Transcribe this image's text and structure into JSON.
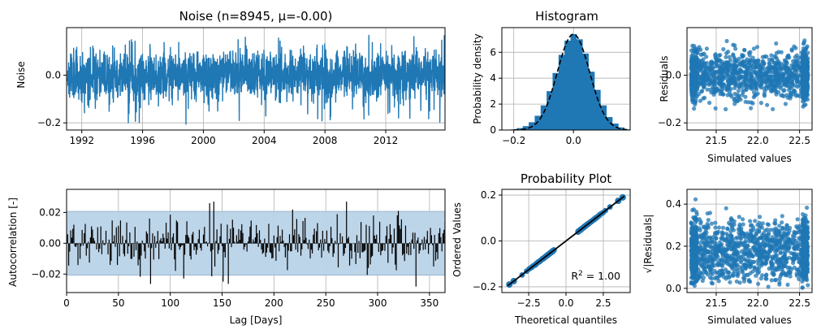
{
  "colors": {
    "primary": "#1f77b4",
    "band": "#b9d3e8",
    "black": "#000000",
    "grid": "#b0b0b0"
  },
  "chart_data": [
    {
      "id": "noise",
      "type": "line",
      "title": "Noise (n=8945, μ=-0.00)",
      "xlabel": "",
      "ylabel": "Noise",
      "xlim": [
        1991.0,
        2015.9
      ],
      "ylim": [
        -0.23,
        0.2
      ],
      "xticks": [
        1992,
        1996,
        2000,
        2004,
        2008,
        2012
      ],
      "yticks": [
        -0.2,
        0.0
      ],
      "xtick_labels": [
        "1992",
        "1996",
        "2000",
        "2004",
        "2008",
        "2012"
      ],
      "ytick_labels": [
        "−0.2",
        "0.0"
      ],
      "grid": true,
      "n": 8945,
      "series": [
        {
          "name": "",
          "summary": {
            "mean": -0.0,
            "std": 0.05,
            "min": -0.21,
            "max": 0.19
          }
        }
      ]
    },
    {
      "id": "histogram",
      "type": "bar",
      "title": "Histogram",
      "xlabel": "",
      "ylabel": "Probability density",
      "xlim": [
        -0.24,
        0.19
      ],
      "ylim": [
        0,
        7.9
      ],
      "xticks": [
        -0.2,
        0.0
      ],
      "yticks": [
        0,
        2,
        4,
        6
      ],
      "xtick_labels": [
        "−0.2",
        "0.0"
      ],
      "ytick_labels": [
        "0",
        "2",
        "4",
        "6"
      ],
      "grid": true,
      "bins": [
        -0.2,
        -0.18,
        -0.16,
        -0.14,
        -0.12,
        -0.1,
        -0.08,
        -0.06,
        -0.04,
        -0.02,
        0.0,
        0.02,
        0.04,
        0.06,
        0.08,
        0.1,
        0.12,
        0.14,
        0.16,
        0.18
      ],
      "values": [
        0.05,
        0.15,
        0.3,
        0.6,
        1.1,
        1.9,
        3.0,
        4.4,
        5.8,
        6.9,
        7.4,
        7.0,
        5.9,
        4.5,
        3.1,
        1.9,
        1.0,
        0.5,
        0.2,
        0.05
      ],
      "normal_fit": {
        "mean": 0.0,
        "std": 0.054
      }
    },
    {
      "id": "residuals",
      "type": "scatter",
      "title": "",
      "xlabel": "Simulated values",
      "ylabel": "Residuals",
      "xlim": [
        21.15,
        22.65
      ],
      "ylim": [
        -0.23,
        0.2
      ],
      "xticks": [
        21.5,
        22.0,
        22.5
      ],
      "yticks": [
        -0.2,
        0.0
      ],
      "xtick_labels": [
        "21.5",
        "22.0",
        "22.5"
      ],
      "ytick_labels": [
        "−0.2",
        "0.0"
      ],
      "grid": true,
      "summary": {
        "x_range": [
          21.2,
          22.6
        ],
        "y_range": [
          -0.21,
          0.19
        ]
      }
    },
    {
      "id": "autocorrelation",
      "type": "bar",
      "title": "",
      "xlabel": "Lag [Days]",
      "ylabel": "Autocorrelation [-]",
      "xlim": [
        0,
        365
      ],
      "ylim": [
        -0.032,
        0.035
      ],
      "xticks": [
        0,
        50,
        100,
        150,
        200,
        250,
        300,
        350
      ],
      "yticks": [
        -0.02,
        0.0,
        0.02
      ],
      "xtick_labels": [
        "0",
        "50",
        "100",
        "150",
        "200",
        "250",
        "300",
        "350"
      ],
      "ytick_labels": [
        "−0.02",
        "0.00",
        "0.02"
      ],
      "grid": true,
      "confidence_band": [
        -0.0207,
        0.0207
      ],
      "max_lag": 365,
      "highlights": [
        {
          "lag": 142,
          "value": 0.032
        },
        {
          "lag": 138,
          "value": 0.026
        },
        {
          "lag": 270,
          "value": 0.027
        },
        {
          "lag": 337,
          "value": -0.028
        }
      ]
    },
    {
      "id": "probability_plot",
      "type": "scatter",
      "title": "Probability Plot",
      "xlabel": "Theoretical quantiles",
      "ylabel": "Ordered Values",
      "xlim": [
        -4.3,
        4.3
      ],
      "ylim": [
        -0.225,
        0.225
      ],
      "xticks": [
        -2.5,
        0.0,
        2.5
      ],
      "yticks": [
        -0.2,
        0.0,
        0.2
      ],
      "xtick_labels": [
        "−2.5",
        "0.0",
        "2.5"
      ],
      "ytick_labels": [
        "−0.2",
        "0.0",
        "0.2"
      ],
      "grid": true,
      "fit_line": {
        "slope": 0.05,
        "intercept": 0.0
      },
      "annotation": "R² = 1.00",
      "annotation_base": "R",
      "annotation_sup": "2",
      "annotation_rest": " = 1.00"
    },
    {
      "id": "sqrt_residuals",
      "type": "scatter",
      "title": "",
      "xlabel": "Simulated values",
      "ylabel": "√|Residuals|",
      "xlim": [
        21.15,
        22.65
      ],
      "ylim": [
        -0.02,
        0.47
      ],
      "xticks": [
        21.5,
        22.0,
        22.5
      ],
      "yticks": [
        0.0,
        0.2,
        0.4
      ],
      "xtick_labels": [
        "21.5",
        "22.0",
        "22.5"
      ],
      "ytick_labels": [
        "0.0",
        "0.2",
        "0.4"
      ],
      "grid": true,
      "summary": {
        "x_range": [
          21.2,
          22.6
        ],
        "y_range": [
          0.0,
          0.45
        ]
      }
    }
  ]
}
